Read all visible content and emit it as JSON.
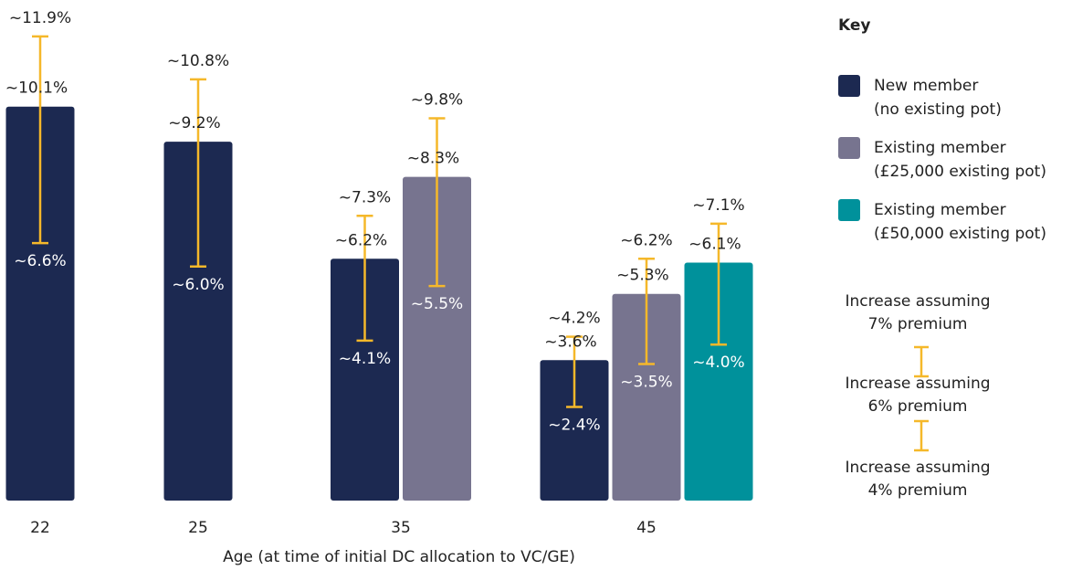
{
  "chart_data": {
    "type": "bar",
    "xlabel": "Age (at time of initial DC allocation to VC/GE)",
    "categories": [
      "22",
      "25",
      "35",
      "45"
    ],
    "error_color": "#f5b82a",
    "series": [
      {
        "name": "New member",
        "detail": "(no existing pot)",
        "color": "#1c2951",
        "values": [
          10.1,
          9.2,
          6.2,
          3.6
        ],
        "value_labels": [
          "~10.1%",
          "~9.2%",
          "~6.2%",
          "~3.6%"
        ],
        "high": [
          11.9,
          10.8,
          7.3,
          4.2
        ],
        "high_labels": [
          "~11.9%",
          "~10.8%",
          "~7.3%",
          "~4.2%"
        ],
        "low": [
          6.6,
          6.0,
          4.1,
          2.4
        ],
        "low_labels": [
          "~6.6%",
          "~6.0%",
          "~4.1%",
          "~2.4%"
        ]
      },
      {
        "name": "Existing member",
        "detail": "(£25,000 existing pot)",
        "color": "#77748f",
        "values": [
          null,
          null,
          8.3,
          5.3
        ],
        "value_labels": [
          null,
          null,
          "~8.3%",
          "~5.3%"
        ],
        "high": [
          null,
          null,
          9.8,
          6.2
        ],
        "high_labels": [
          null,
          null,
          "~9.8%",
          "~6.2%"
        ],
        "low": [
          null,
          null,
          5.5,
          3.5
        ],
        "low_labels": [
          null,
          null,
          "~5.5%",
          "~3.5%"
        ]
      },
      {
        "name": "Existing member",
        "detail": "(£50,000 existing pot)",
        "color": "#00919b",
        "values": [
          null,
          null,
          null,
          6.1
        ],
        "value_labels": [
          null,
          null,
          null,
          "~6.1%"
        ],
        "high": [
          null,
          null,
          null,
          7.1
        ],
        "high_labels": [
          null,
          null,
          null,
          "~7.1%"
        ],
        "low": [
          null,
          null,
          null,
          4.0
        ],
        "low_labels": [
          null,
          null,
          null,
          "~4.0%"
        ]
      }
    ],
    "key": {
      "title": "Key",
      "premium_labels": [
        [
          "Increase assuming",
          "7% premium"
        ],
        [
          "Increase assuming",
          "6% premium"
        ],
        [
          "Increase assuming",
          "4% premium"
        ]
      ]
    }
  }
}
